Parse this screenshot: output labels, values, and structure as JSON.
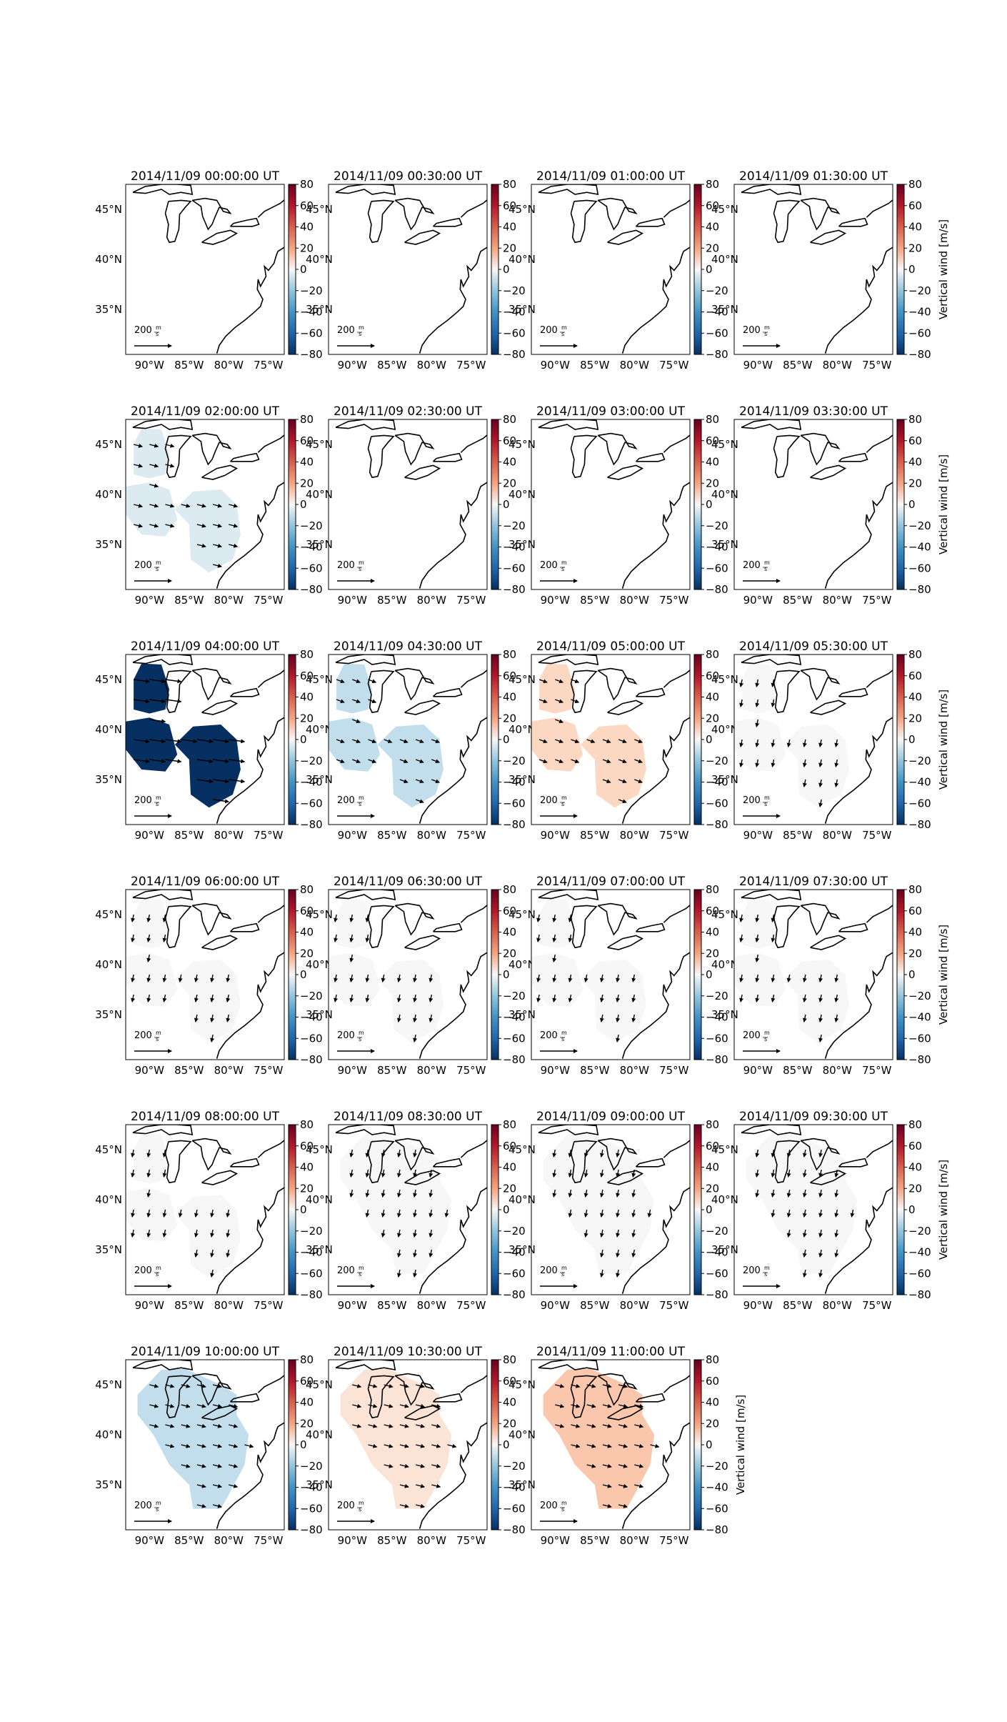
{
  "chart_data": {
    "type": "heatmap",
    "panels": [
      {
        "title": "2014/11/09 00:00:00 UT",
        "fill": "none",
        "value": 0
      },
      {
        "title": "2014/11/09 00:30:00 UT",
        "fill": "none",
        "value": 0
      },
      {
        "title": "2014/11/09 01:00:00 UT",
        "fill": "none",
        "value": 0
      },
      {
        "title": "2014/11/09 01:30:00 UT",
        "fill": "none",
        "value": 0
      },
      {
        "title": "2014/11/09 02:00:00 UT",
        "fill": "blobs",
        "value": -5
      },
      {
        "title": "2014/11/09 02:30:00 UT",
        "fill": "none",
        "value": 0
      },
      {
        "title": "2014/11/09 03:00:00 UT",
        "fill": "none",
        "value": 0
      },
      {
        "title": "2014/11/09 03:30:00 UT",
        "fill": "none",
        "value": 0
      },
      {
        "title": "2014/11/09 04:00:00 UT",
        "fill": "blobs",
        "value": -80
      },
      {
        "title": "2014/11/09 04:30:00 UT",
        "fill": "blobs",
        "value": -10
      },
      {
        "title": "2014/11/09 05:00:00 UT",
        "fill": "blobs",
        "value": 8
      },
      {
        "title": "2014/11/09 05:30:00 UT",
        "fill": "blobs",
        "value": 0
      },
      {
        "title": "2014/11/09 06:00:00 UT",
        "fill": "blobs",
        "value": 0
      },
      {
        "title": "2014/11/09 06:30:00 UT",
        "fill": "blobs",
        "value": 0
      },
      {
        "title": "2014/11/09 07:00:00 UT",
        "fill": "blobs",
        "value": 0
      },
      {
        "title": "2014/11/09 07:30:00 UT",
        "fill": "blobs",
        "value": 0
      },
      {
        "title": "2014/11/09 08:00:00 UT",
        "fill": "blobs",
        "value": 0
      },
      {
        "title": "2014/11/09 08:30:00 UT",
        "fill": "wide",
        "value": 0
      },
      {
        "title": "2014/11/09 09:00:00 UT",
        "fill": "wide",
        "value": 0
      },
      {
        "title": "2014/11/09 09:30:00 UT",
        "fill": "wide",
        "value": 0
      },
      {
        "title": "2014/11/09 10:00:00 UT",
        "fill": "wide",
        "value": -10
      },
      {
        "title": "2014/11/09 10:30:00 UT",
        "fill": "wide",
        "value": 5
      },
      {
        "title": "2014/11/09 11:00:00 UT",
        "fill": "wide",
        "value": 12
      }
    ],
    "colorbar": {
      "label": "Vertical wind [m/s]",
      "range": [
        -80,
        80
      ],
      "ticks": [
        "80",
        "60",
        "40",
        "20",
        "0",
        "−20",
        "−40",
        "−60",
        "−80"
      ],
      "cmap": "RdBu_r"
    },
    "x_ticks": [
      "90°W",
      "85°W",
      "80°W",
      "75°W"
    ],
    "y_ticks": [
      "45°N",
      "40°N",
      "35°N"
    ],
    "ref_vector_label": "200",
    "ref_vector_unit_num": "m",
    "ref_vector_unit_den": "s",
    "colors": {
      "neg_max": "#053061",
      "neutral": "#f7f7f7",
      "pos_max": "#67001f"
    }
  }
}
